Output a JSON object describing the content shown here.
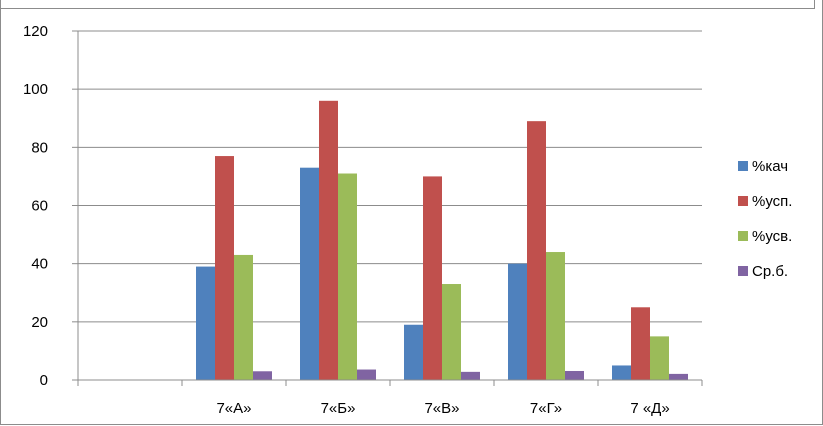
{
  "chart_data": {
    "type": "bar",
    "categories": [
      "",
      "7«А»",
      "7«Б»",
      "7«В»",
      "7«Г»",
      "7 «Д»"
    ],
    "series": [
      {
        "name": "%кач",
        "color": "#4f81bd",
        "values": [
          null,
          39,
          73,
          19,
          40,
          5
        ]
      },
      {
        "name": "%усп.",
        "color": "#c0504d",
        "values": [
          null,
          77,
          96,
          70,
          89,
          25
        ]
      },
      {
        "name": "%усв.",
        "color": "#9bbb59",
        "values": [
          null,
          43,
          71,
          33,
          44,
          15
        ]
      },
      {
        "name": "Ср.б.",
        "color": "#8064a2",
        "values": [
          null,
          3,
          3.6,
          2.8,
          3.1,
          2.1
        ]
      }
    ],
    "yticks": [
      0,
      20,
      40,
      60,
      80,
      100,
      120
    ],
    "ylim": [
      0,
      120
    ],
    "grid": true,
    "legend": "right"
  }
}
